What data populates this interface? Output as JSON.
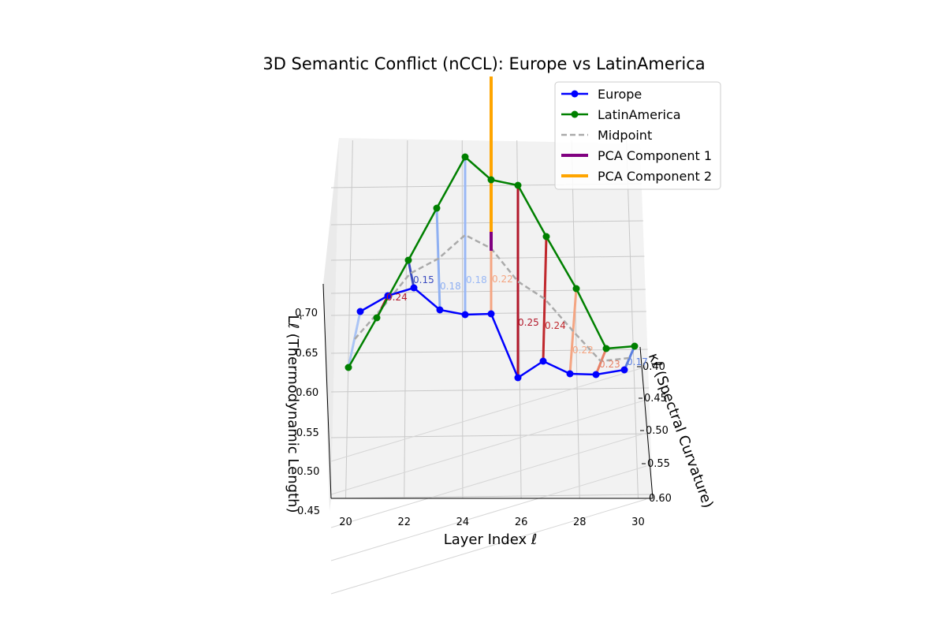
{
  "chart_data": {
    "type": "line",
    "projection": "3d",
    "title": "3D Semantic Conflict (nCCL): Europe vs LatinAmerica",
    "xlabel": "Layer Index ℓ",
    "ylabel": "κℓ (Spectral Curvature)",
    "zlabel": "L̃ℓ (Thermodynamic Length)",
    "xlim": [
      19.5,
      30.5
    ],
    "ylim": [
      0.37,
      0.62
    ],
    "zlim": [
      0.45,
      0.72
    ],
    "xticks": [
      "20",
      "22",
      "24",
      "26",
      "28",
      "30"
    ],
    "yticks": [
      "0.40",
      "0.45",
      "0.50",
      "0.55",
      "0.60"
    ],
    "zticks": [
      "0.45",
      "0.50",
      "0.55",
      "0.60",
      "0.65",
      "0.70"
    ],
    "grid": true,
    "legend_position": "upper-right",
    "legend": [
      "Europe",
      "LatinAmerica",
      "Midpoint",
      "PCA Component 1",
      "PCA Component 2"
    ],
    "series": [
      {
        "name": "Europe",
        "color": "#0000ff",
        "x": [
          20,
          21,
          22,
          23,
          24,
          25,
          26,
          27,
          28,
          29,
          30
        ],
        "kappa": [
          0.42,
          0.42,
          0.42,
          0.42,
          0.42,
          0.42,
          0.42,
          0.42,
          0.42,
          0.42,
          0.42
        ],
        "length": [
          0.626,
          0.631,
          0.629,
          0.622,
          0.618,
          0.615,
          0.56,
          0.568,
          0.559,
          0.559,
          0.562
        ]
      },
      {
        "name": "LatinAmerica",
        "color": "#008000",
        "x": [
          20,
          21,
          22,
          23,
          24,
          25,
          26,
          27,
          28,
          29,
          30
        ],
        "kappa": [
          0.42,
          0.42,
          0.42,
          0.42,
          0.42,
          0.42,
          0.42,
          0.42,
          0.42,
          0.42,
          0.42
        ],
        "length": [
          0.586,
          0.616,
          0.66,
          0.705,
          0.745,
          0.72,
          0.715,
          0.675,
          0.637,
          0.593,
          0.594
        ]
      },
      {
        "name": "Midpoint",
        "color": "#aaaaaa",
        "x": [
          20,
          21,
          22,
          23,
          24,
          25,
          26,
          27,
          28,
          29,
          30
        ],
        "kappa": [
          0.42,
          0.42,
          0.42,
          0.42,
          0.42,
          0.42,
          0.42,
          0.42,
          0.42,
          0.42,
          0.42
        ],
        "length": [
          0.606,
          0.624,
          0.645,
          0.664,
          0.682,
          0.668,
          0.638,
          0.622,
          0.598,
          0.576,
          0.578
        ]
      }
    ],
    "conflict_labels": [
      "",
      "0.24",
      "0.15",
      "0.18",
      "0.18",
      "0.22",
      "0.25",
      "0.24",
      "0.22",
      "0.23",
      "0.17"
    ],
    "conflict_colors": [
      "#aac4f5",
      "#b2182b",
      "#3b4cc0",
      "#8fb0f2",
      "#9ab8f5",
      "#f4a582",
      "#b2182b",
      "#c0282d",
      "#f4a582",
      "#e88066",
      "#5b7fe0"
    ],
    "pca_components": [
      {
        "name": "PCA Component 1",
        "color": "#800080",
        "x": 25,
        "length_from": 0.664,
        "length_to": 0.694
      },
      {
        "name": "PCA Component 2",
        "color": "#ffa500",
        "x": 25,
        "length_from": 0.694,
        "length_to": 0.8
      }
    ]
  }
}
